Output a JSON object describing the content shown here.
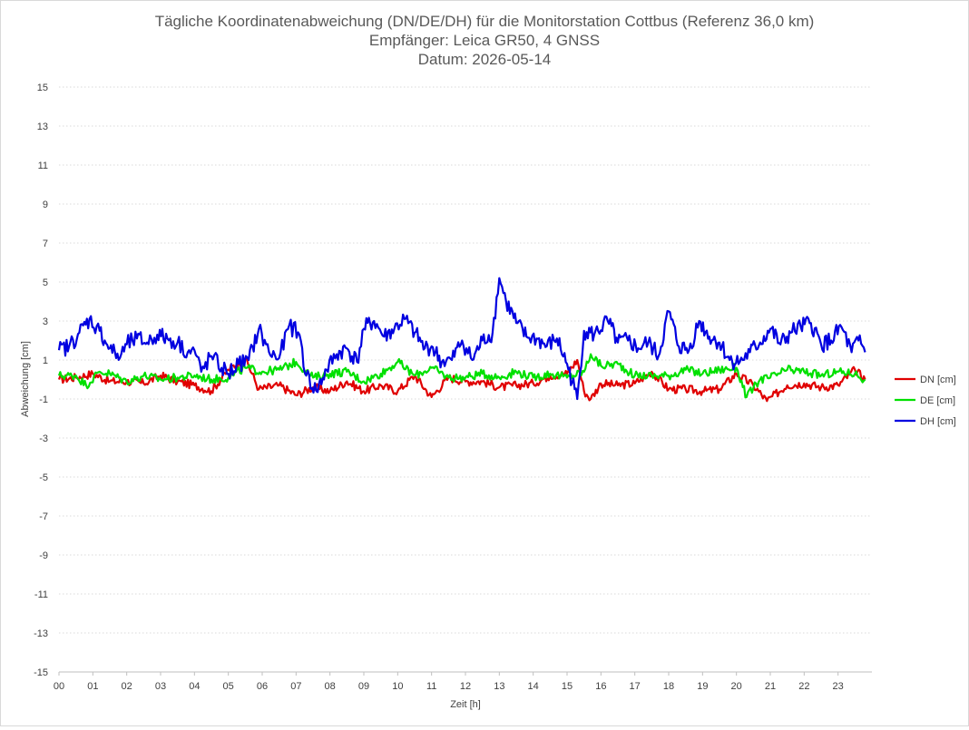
{
  "chart_data": {
    "type": "line",
    "title_lines": [
      "Tägliche Koordinatenabweichung (DN/DE/DH) für die Monitorstation Cottbus (Referenz 36,0 km)",
      "Empfänger: Leica GR50, 4 GNSS",
      "Datum: 2026-05-14"
    ],
    "xlabel": "Zeit [h]",
    "ylabel": "Abweichung [cm]",
    "xlim": [
      0,
      24
    ],
    "ylim": [
      -15,
      15
    ],
    "x_ticks": [
      "00",
      "01",
      "02",
      "03",
      "04",
      "05",
      "06",
      "07",
      "08",
      "09",
      "10",
      "11",
      "12",
      "13",
      "14",
      "15",
      "16",
      "17",
      "18",
      "19",
      "20",
      "21",
      "22",
      "23"
    ],
    "y_ticks": [
      15,
      13,
      11,
      9,
      7,
      5,
      3,
      1,
      -1,
      -3,
      -5,
      -7,
      -9,
      -11,
      -13,
      -15
    ],
    "grid": "horizontal-dotted",
    "legend_position": "right",
    "series": [
      {
        "name": "DN [cm]",
        "color": "#e00000",
        "points": [
          [
            0,
            0.0
          ],
          [
            0.5,
            0.1
          ],
          [
            1,
            0.3
          ],
          [
            1.5,
            -0.1
          ],
          [
            2,
            -0.1
          ],
          [
            2.5,
            -0.2
          ],
          [
            3,
            0.2
          ],
          [
            3.5,
            -0.1
          ],
          [
            4,
            -0.3
          ],
          [
            4.5,
            -0.6
          ],
          [
            5,
            0.5
          ],
          [
            5.5,
            1.1
          ],
          [
            5.9,
            -0.5
          ],
          [
            6.5,
            -0.3
          ],
          [
            7,
            -0.8
          ],
          [
            7.5,
            -0.4
          ],
          [
            8,
            -0.6
          ],
          [
            8.5,
            -0.1
          ],
          [
            9,
            -0.6
          ],
          [
            9.5,
            -0.3
          ],
          [
            10,
            -0.6
          ],
          [
            10.5,
            0.2
          ],
          [
            11,
            -0.9
          ],
          [
            11.5,
            0.1
          ],
          [
            12,
            -0.1
          ],
          [
            12.5,
            -0.1
          ],
          [
            13,
            -0.4
          ],
          [
            13.5,
            -0.3
          ],
          [
            14,
            -0.2
          ],
          [
            14.5,
            0.2
          ],
          [
            15,
            0.3
          ],
          [
            15.3,
            1.0
          ],
          [
            15.5,
            -0.6
          ],
          [
            15.7,
            -1.0
          ],
          [
            16,
            -0.2
          ],
          [
            16.5,
            -0.3
          ],
          [
            17,
            -0.2
          ],
          [
            17.5,
            0.4
          ],
          [
            18,
            -0.5
          ],
          [
            18.5,
            -0.5
          ],
          [
            19,
            -0.6
          ],
          [
            19.5,
            -0.5
          ],
          [
            20,
            0.3
          ],
          [
            20.5,
            -0.3
          ],
          [
            20.9,
            -1.1
          ],
          [
            21.5,
            -0.3
          ],
          [
            22,
            -0.2
          ],
          [
            22.5,
            -0.4
          ],
          [
            23,
            -0.3
          ],
          [
            23.5,
            0.5
          ],
          [
            23.8,
            0.0
          ]
        ]
      },
      {
        "name": "DE [cm]",
        "color": "#00e000",
        "points": [
          [
            0,
            0.2
          ],
          [
            0.5,
            0.2
          ],
          [
            0.8,
            -0.3
          ],
          [
            1.2,
            0.4
          ],
          [
            1.5,
            0.3
          ],
          [
            2,
            -0.1
          ],
          [
            2.5,
            0.2
          ],
          [
            3,
            0.0
          ],
          [
            3.5,
            0.1
          ],
          [
            4,
            0.2
          ],
          [
            4.5,
            0.0
          ],
          [
            5,
            0.1
          ],
          [
            5.5,
            0.6
          ],
          [
            6,
            0.4
          ],
          [
            6.5,
            0.5
          ],
          [
            7,
            0.9
          ],
          [
            7.5,
            0.1
          ],
          [
            8,
            0.3
          ],
          [
            8.5,
            0.4
          ],
          [
            9,
            -0.1
          ],
          [
            9.5,
            0.3
          ],
          [
            10,
            0.9
          ],
          [
            10.5,
            0.2
          ],
          [
            11,
            0.6
          ],
          [
            11.5,
            0.1
          ],
          [
            12,
            0.1
          ],
          [
            12.5,
            0.3
          ],
          [
            13,
            0.1
          ],
          [
            13.5,
            0.4
          ],
          [
            14,
            0.1
          ],
          [
            14.5,
            0.3
          ],
          [
            15,
            0.1
          ],
          [
            15.5,
            0.4
          ],
          [
            15.7,
            1.3
          ],
          [
            16,
            0.7
          ],
          [
            16.5,
            0.8
          ],
          [
            17,
            0.2
          ],
          [
            17.5,
            0.2
          ],
          [
            18,
            0.2
          ],
          [
            18.5,
            0.5
          ],
          [
            19,
            0.3
          ],
          [
            19.5,
            0.5
          ],
          [
            20,
            0.6
          ],
          [
            20.3,
            -0.9
          ],
          [
            20.7,
            0.0
          ],
          [
            21,
            0.1
          ],
          [
            21.5,
            0.5
          ],
          [
            22,
            0.4
          ],
          [
            22.5,
            0.2
          ],
          [
            23,
            0.4
          ],
          [
            23.5,
            0.3
          ],
          [
            23.8,
            0.0
          ]
        ]
      },
      {
        "name": "DH [cm]",
        "color": "#0000e0",
        "points": [
          [
            0,
            1.5
          ],
          [
            0.3,
            1.7
          ],
          [
            0.6,
            2.4
          ],
          [
            0.9,
            3.1
          ],
          [
            1.2,
            2.5
          ],
          [
            1.5,
            1.6
          ],
          [
            1.8,
            1.1
          ],
          [
            2,
            1.8
          ],
          [
            2.3,
            2.1
          ],
          [
            2.6,
            1.9
          ],
          [
            2.9,
            2.3
          ],
          [
            3.2,
            2.1
          ],
          [
            3.5,
            1.9
          ],
          [
            3.8,
            1.4
          ],
          [
            4,
            1.5
          ],
          [
            4.2,
            0.4
          ],
          [
            4.5,
            1.2
          ],
          [
            4.8,
            0.6
          ],
          [
            5,
            0.3
          ],
          [
            5.3,
            0.8
          ],
          [
            5.6,
            1.0
          ],
          [
            5.9,
            2.6
          ],
          [
            6.2,
            1.4
          ],
          [
            6.5,
            1.1
          ],
          [
            6.8,
            2.8
          ],
          [
            7.1,
            2.3
          ],
          [
            7.3,
            0.2
          ],
          [
            7.6,
            -0.6
          ],
          [
            7.9,
            0.5
          ],
          [
            8.2,
            1.3
          ],
          [
            8.5,
            1.6
          ],
          [
            8.8,
            0.9
          ],
          [
            9,
            2.6
          ],
          [
            9.3,
            3.0
          ],
          [
            9.6,
            2.2
          ],
          [
            9.9,
            2.6
          ],
          [
            10.2,
            3.1
          ],
          [
            10.5,
            2.4
          ],
          [
            10.8,
            1.6
          ],
          [
            11,
            1.7
          ],
          [
            11.3,
            0.9
          ],
          [
            11.6,
            1.0
          ],
          [
            11.9,
            2.0
          ],
          [
            12.2,
            1.0
          ],
          [
            12.5,
            2.0
          ],
          [
            12.8,
            2.4
          ],
          [
            13.0,
            5.2
          ],
          [
            13.2,
            4.0
          ],
          [
            13.5,
            2.9
          ],
          [
            13.8,
            2.2
          ],
          [
            14.1,
            2.1
          ],
          [
            14.4,
            1.7
          ],
          [
            14.7,
            2.1
          ],
          [
            15,
            0.8
          ],
          [
            15.3,
            -1.0
          ],
          [
            15.5,
            2.5
          ],
          [
            15.8,
            2.3
          ],
          [
            16.2,
            3.0
          ],
          [
            16.5,
            1.9
          ],
          [
            16.8,
            2.0
          ],
          [
            17.1,
            1.6
          ],
          [
            17.4,
            1.9
          ],
          [
            17.7,
            1.2
          ],
          [
            18,
            3.5
          ],
          [
            18.3,
            1.7
          ],
          [
            18.6,
            1.5
          ],
          [
            18.9,
            3.0
          ],
          [
            19.2,
            2.2
          ],
          [
            19.5,
            1.9
          ],
          [
            19.8,
            1.0
          ],
          [
            20.1,
            0.9
          ],
          [
            20.4,
            1.4
          ],
          [
            20.7,
            1.9
          ],
          [
            21,
            2.6
          ],
          [
            21.3,
            1.8
          ],
          [
            21.6,
            2.4
          ],
          [
            21.9,
            2.7
          ],
          [
            22.2,
            2.9
          ],
          [
            22.5,
            1.8
          ],
          [
            22.8,
            2.0
          ],
          [
            23.1,
            2.7
          ],
          [
            23.4,
            1.4
          ],
          [
            23.6,
            2.0
          ],
          [
            23.8,
            1.4
          ]
        ]
      }
    ]
  }
}
